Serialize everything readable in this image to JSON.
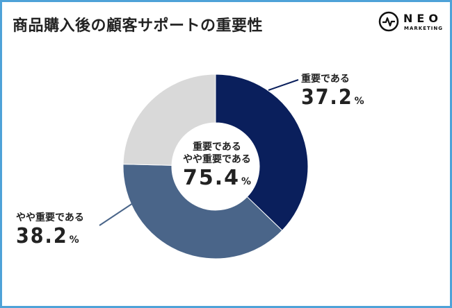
{
  "title": "商品購入後の顧客サポートの重要性",
  "logo": {
    "name": "NEO",
    "sub": "MARKETING"
  },
  "center": {
    "line1": "重要である",
    "line2": "やや重要である",
    "value": "75.4",
    "unit": "%"
  },
  "colors": {
    "frame": "#4ea2d8",
    "s1": "#0a1f5c",
    "s2": "#4a6589",
    "s3": "#d9d9d9"
  },
  "chart_data": {
    "type": "pie",
    "variant": "donut",
    "title": "商品購入後の顧客サポートの重要性",
    "slices": [
      {
        "name": "重要である",
        "value": 37.2,
        "label": "37.2",
        "color": "#0a1f5c"
      },
      {
        "name": "やや重要である",
        "value": 38.2,
        "label": "38.2",
        "color": "#4a6589"
      },
      {
        "name": "",
        "value": 24.6,
        "color": "#d9d9d9"
      }
    ],
    "unit": "%"
  }
}
